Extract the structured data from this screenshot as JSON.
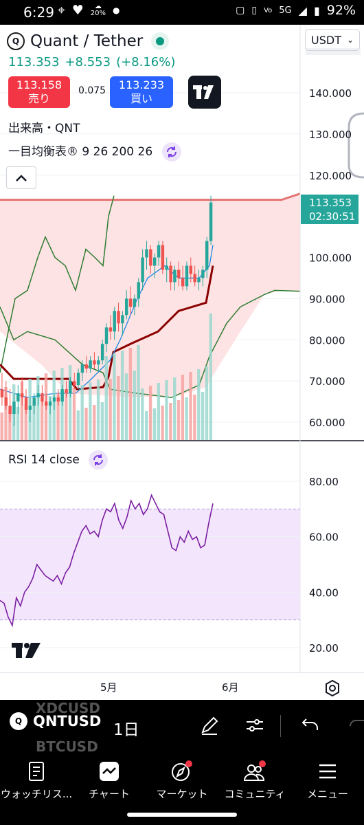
{
  "status_bar": {
    "time": "6:29",
    "weather_temp": "20%",
    "network": "5G",
    "battery": "92%"
  },
  "header": {
    "title": "Quant / Tether",
    "currency": "USDT",
    "price": "113.353",
    "change": "+8.553",
    "change_pct": "(+8.16%)"
  },
  "trade": {
    "sell_price": "113.158",
    "sell_label": "売り",
    "spread": "0.075",
    "buy_price": "113.233",
    "buy_label": "買い"
  },
  "studies": {
    "volume_label": "出来高・QNT",
    "ichimoku_label": "一目均衡表® 9 26 200 26",
    "rsi_label": "RSI 14 close"
  },
  "price_tag": {
    "price": "113.353",
    "countdown": "02:30:51"
  },
  "price_axis": [
    "140.000",
    "130.000",
    "120.000",
    "100.000",
    "90.000",
    "80.000",
    "70.000",
    "60.000"
  ],
  "rsi_axis": [
    "80.00",
    "60.00",
    "40.00",
    "20.00"
  ],
  "time_axis": [
    "5月",
    "6月"
  ],
  "toolbar": {
    "symbol": "QNTUSD",
    "symbol_prev": "XDCUSD",
    "symbol_next": "BTCUSD",
    "interval": "1日"
  },
  "nav": [
    {
      "label": "ウォッチリス..."
    },
    {
      "label": "チャート"
    },
    {
      "label": "マーケット"
    },
    {
      "label": "コミュニティ"
    },
    {
      "label": "メニュー"
    }
  ],
  "colors": {
    "up": "#26a69a",
    "down": "#ef5350",
    "buy": "#2962ff",
    "sell": "#f23645",
    "rsi_line": "#7b1fa2",
    "rsi_band": "#f3e5fc",
    "cloud": "#fde3e3",
    "chikou": "#2e7d32",
    "kijun": "#8b0000",
    "tenkan": "#1e88e5"
  },
  "chart_data": [
    {
      "type": "candlestick",
      "y_range": [
        55,
        145
      ],
      "candles": [
        {
          "o": 68,
          "h": 72,
          "l": 64,
          "c": 66
        },
        {
          "o": 66,
          "h": 70,
          "l": 63,
          "c": 64
        },
        {
          "o": 64,
          "h": 68,
          "l": 60,
          "c": 62
        },
        {
          "o": 62,
          "h": 67,
          "l": 59,
          "c": 65
        },
        {
          "o": 65,
          "h": 69,
          "l": 62,
          "c": 67
        },
        {
          "o": 67,
          "h": 71,
          "l": 64,
          "c": 66
        },
        {
          "o": 66,
          "h": 68,
          "l": 62,
          "c": 63
        },
        {
          "o": 63,
          "h": 66,
          "l": 60,
          "c": 64
        },
        {
          "o": 64,
          "h": 67,
          "l": 62,
          "c": 66
        },
        {
          "o": 66,
          "h": 69,
          "l": 64,
          "c": 67
        },
        {
          "o": 67,
          "h": 69,
          "l": 64,
          "c": 65
        },
        {
          "o": 65,
          "h": 67,
          "l": 63,
          "c": 64
        },
        {
          "o": 64,
          "h": 66,
          "l": 62,
          "c": 65
        },
        {
          "o": 65,
          "h": 67,
          "l": 63,
          "c": 66
        },
        {
          "o": 66,
          "h": 68,
          "l": 64,
          "c": 65
        },
        {
          "o": 65,
          "h": 69,
          "l": 64,
          "c": 68
        },
        {
          "o": 68,
          "h": 70,
          "l": 66,
          "c": 67
        },
        {
          "o": 67,
          "h": 71,
          "l": 66,
          "c": 70
        },
        {
          "o": 70,
          "h": 72,
          "l": 68,
          "c": 69
        },
        {
          "o": 69,
          "h": 73,
          "l": 68,
          "c": 72
        },
        {
          "o": 72,
          "h": 75,
          "l": 70,
          "c": 74
        },
        {
          "o": 74,
          "h": 76,
          "l": 72,
          "c": 73
        },
        {
          "o": 73,
          "h": 76,
          "l": 72,
          "c": 75
        },
        {
          "o": 75,
          "h": 77,
          "l": 73,
          "c": 74
        },
        {
          "o": 74,
          "h": 76,
          "l": 72,
          "c": 75
        },
        {
          "o": 75,
          "h": 80,
          "l": 74,
          "c": 79
        },
        {
          "o": 79,
          "h": 84,
          "l": 77,
          "c": 83
        },
        {
          "o": 83,
          "h": 86,
          "l": 80,
          "c": 82
        },
        {
          "o": 82,
          "h": 88,
          "l": 80,
          "c": 87
        },
        {
          "o": 87,
          "h": 89,
          "l": 82,
          "c": 84
        },
        {
          "o": 84,
          "h": 87,
          "l": 81,
          "c": 86
        },
        {
          "o": 86,
          "h": 92,
          "l": 85,
          "c": 90
        },
        {
          "o": 90,
          "h": 93,
          "l": 86,
          "c": 88
        },
        {
          "o": 88,
          "h": 91,
          "l": 86,
          "c": 90
        },
        {
          "o": 90,
          "h": 95,
          "l": 88,
          "c": 94
        },
        {
          "o": 94,
          "h": 102,
          "l": 92,
          "c": 100
        },
        {
          "o": 100,
          "h": 104,
          "l": 97,
          "c": 102
        },
        {
          "o": 102,
          "h": 103,
          "l": 96,
          "c": 98
        },
        {
          "o": 98,
          "h": 101,
          "l": 95,
          "c": 100
        },
        {
          "o": 100,
          "h": 104,
          "l": 98,
          "c": 103
        },
        {
          "o": 103,
          "h": 104,
          "l": 96,
          "c": 97
        },
        {
          "o": 97,
          "h": 100,
          "l": 94,
          "c": 98
        },
        {
          "o": 98,
          "h": 99,
          "l": 92,
          "c": 94
        },
        {
          "o": 94,
          "h": 98,
          "l": 92,
          "c": 97
        },
        {
          "o": 97,
          "h": 99,
          "l": 93,
          "c": 95
        },
        {
          "o": 95,
          "h": 98,
          "l": 92,
          "c": 93
        },
        {
          "o": 93,
          "h": 99,
          "l": 92,
          "c": 98
        },
        {
          "o": 98,
          "h": 100,
          "l": 94,
          "c": 96
        },
        {
          "o": 96,
          "h": 98,
          "l": 93,
          "c": 94
        },
        {
          "o": 94,
          "h": 97,
          "l": 92,
          "c": 95
        },
        {
          "o": 95,
          "h": 98,
          "l": 93,
          "c": 97
        },
        {
          "o": 97,
          "h": 105,
          "l": 95,
          "c": 104
        },
        {
          "o": 104,
          "h": 115,
          "l": 103,
          "c": 113.35
        }
      ]
    },
    {
      "type": "line",
      "name": "RSI",
      "y_range": [
        15,
        85
      ],
      "bands": [
        30,
        70
      ],
      "values": [
        37,
        36,
        31,
        28,
        38,
        35,
        40,
        42,
        45,
        50,
        48,
        46,
        45,
        44,
        46,
        43,
        47,
        49,
        54,
        58,
        62,
        64,
        61,
        62,
        60,
        66,
        70,
        69,
        72,
        66,
        63,
        67,
        73,
        70,
        72,
        68,
        70,
        75,
        72,
        69,
        68,
        62,
        56,
        55,
        60,
        58,
        62,
        59,
        60,
        56,
        57,
        65,
        72
      ]
    }
  ]
}
